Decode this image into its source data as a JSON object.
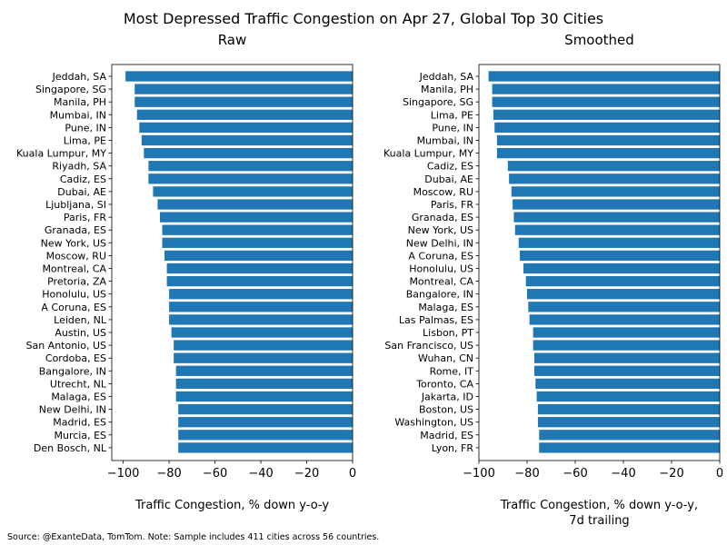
{
  "figure": {
    "suptitle": "Most Depressed Traffic Congestion on Apr 27, Global Top 30 Cities",
    "source_note": "Source: @ExanteData, TomTom.   Note: Sample includes 411 cities across 56 countries.",
    "bar_color": "#1f77b4"
  },
  "chart_data": [
    {
      "type": "bar",
      "orientation": "horizontal",
      "title": "Raw",
      "xlabel": "Traffic Congestion, % down y-o-y",
      "xlim": [
        -105,
        0
      ],
      "xticks": [
        -100,
        -80,
        -60,
        -40,
        -20,
        0
      ],
      "xtick_labels": [
        "−100",
        "−80",
        "−60",
        "−40",
        "−20",
        "0"
      ],
      "categories": [
        "Jeddah, SA",
        "Singapore, SG",
        "Manila, PH",
        "Mumbai, IN",
        "Pune, IN",
        "Lima, PE",
        "Kuala Lumpur, MY",
        "Riyadh, SA",
        "Cadiz, ES",
        "Dubai, AE",
        "Ljubljana, SI",
        "Paris, FR",
        "Granada, ES",
        "New York, US",
        "Moscow, RU",
        "Montreal, CA",
        "Pretoria, ZA",
        "Honolulu, US",
        "A Coruna, ES",
        "Leiden, NL",
        "Austin, US",
        "San Antonio, US",
        "Cordoba, ES",
        "Bangalore, IN",
        "Utrecht, NL",
        "Malaga, ES",
        "New Delhi, IN",
        "Madrid, ES",
        "Murcia, ES",
        "Den Bosch, NL"
      ],
      "values": [
        -99,
        -95,
        -95,
        -94,
        -93,
        -92,
        -91,
        -89,
        -89,
        -87,
        -85,
        -84,
        -83,
        -83,
        -82,
        -81,
        -81,
        -80,
        -80,
        -80,
        -79,
        -78,
        -78,
        -77,
        -77,
        -77,
        -76,
        -76,
        -76,
        -76
      ]
    },
    {
      "type": "bar",
      "orientation": "horizontal",
      "title": "Smoothed",
      "xlabel": "Traffic Congestion, % down y-o-y,",
      "xlabel_line2": "7d trailing",
      "xlim": [
        -100,
        0
      ],
      "xticks": [
        -100,
        -80,
        -60,
        -40,
        -20,
        0
      ],
      "xtick_labels": [
        "−100",
        "−80",
        "−60",
        "−40",
        "−20",
        "0"
      ],
      "categories": [
        "Jeddah, SA",
        "Manila, PH",
        "Singapore, SG",
        "Lima, PE",
        "Pune, IN",
        "Mumbai, IN",
        "Kuala Lumpur, MY",
        "Cadiz, ES",
        "Dubai, AE",
        "Moscow, RU",
        "Paris, FR",
        "Granada, ES",
        "New York, US",
        "New Delhi, IN",
        "A Coruna, ES",
        "Honolulu, US",
        "Montreal, CA",
        "Bangalore, IN",
        "Malaga, ES",
        "Las Palmas, ES",
        "Lisbon, PT",
        "San Francisco, US",
        "Wuhan, CN",
        "Rome, IT",
        "Toronto, CA",
        "Jakarta, ID",
        "Boston, US",
        "Washington, US",
        "Madrid, ES",
        "Lyon, FR"
      ],
      "values": [
        -96,
        -94.5,
        -94.5,
        -94,
        -93.5,
        -92.5,
        -92.5,
        -88,
        -87.5,
        -86.5,
        -86,
        -85.5,
        -85,
        -83.5,
        -83,
        -81.5,
        -80.5,
        -80,
        -79.5,
        -79,
        -77.5,
        -77.5,
        -77,
        -77,
        -76.5,
        -76,
        -75.5,
        -75.5,
        -75,
        -75
      ]
    }
  ]
}
